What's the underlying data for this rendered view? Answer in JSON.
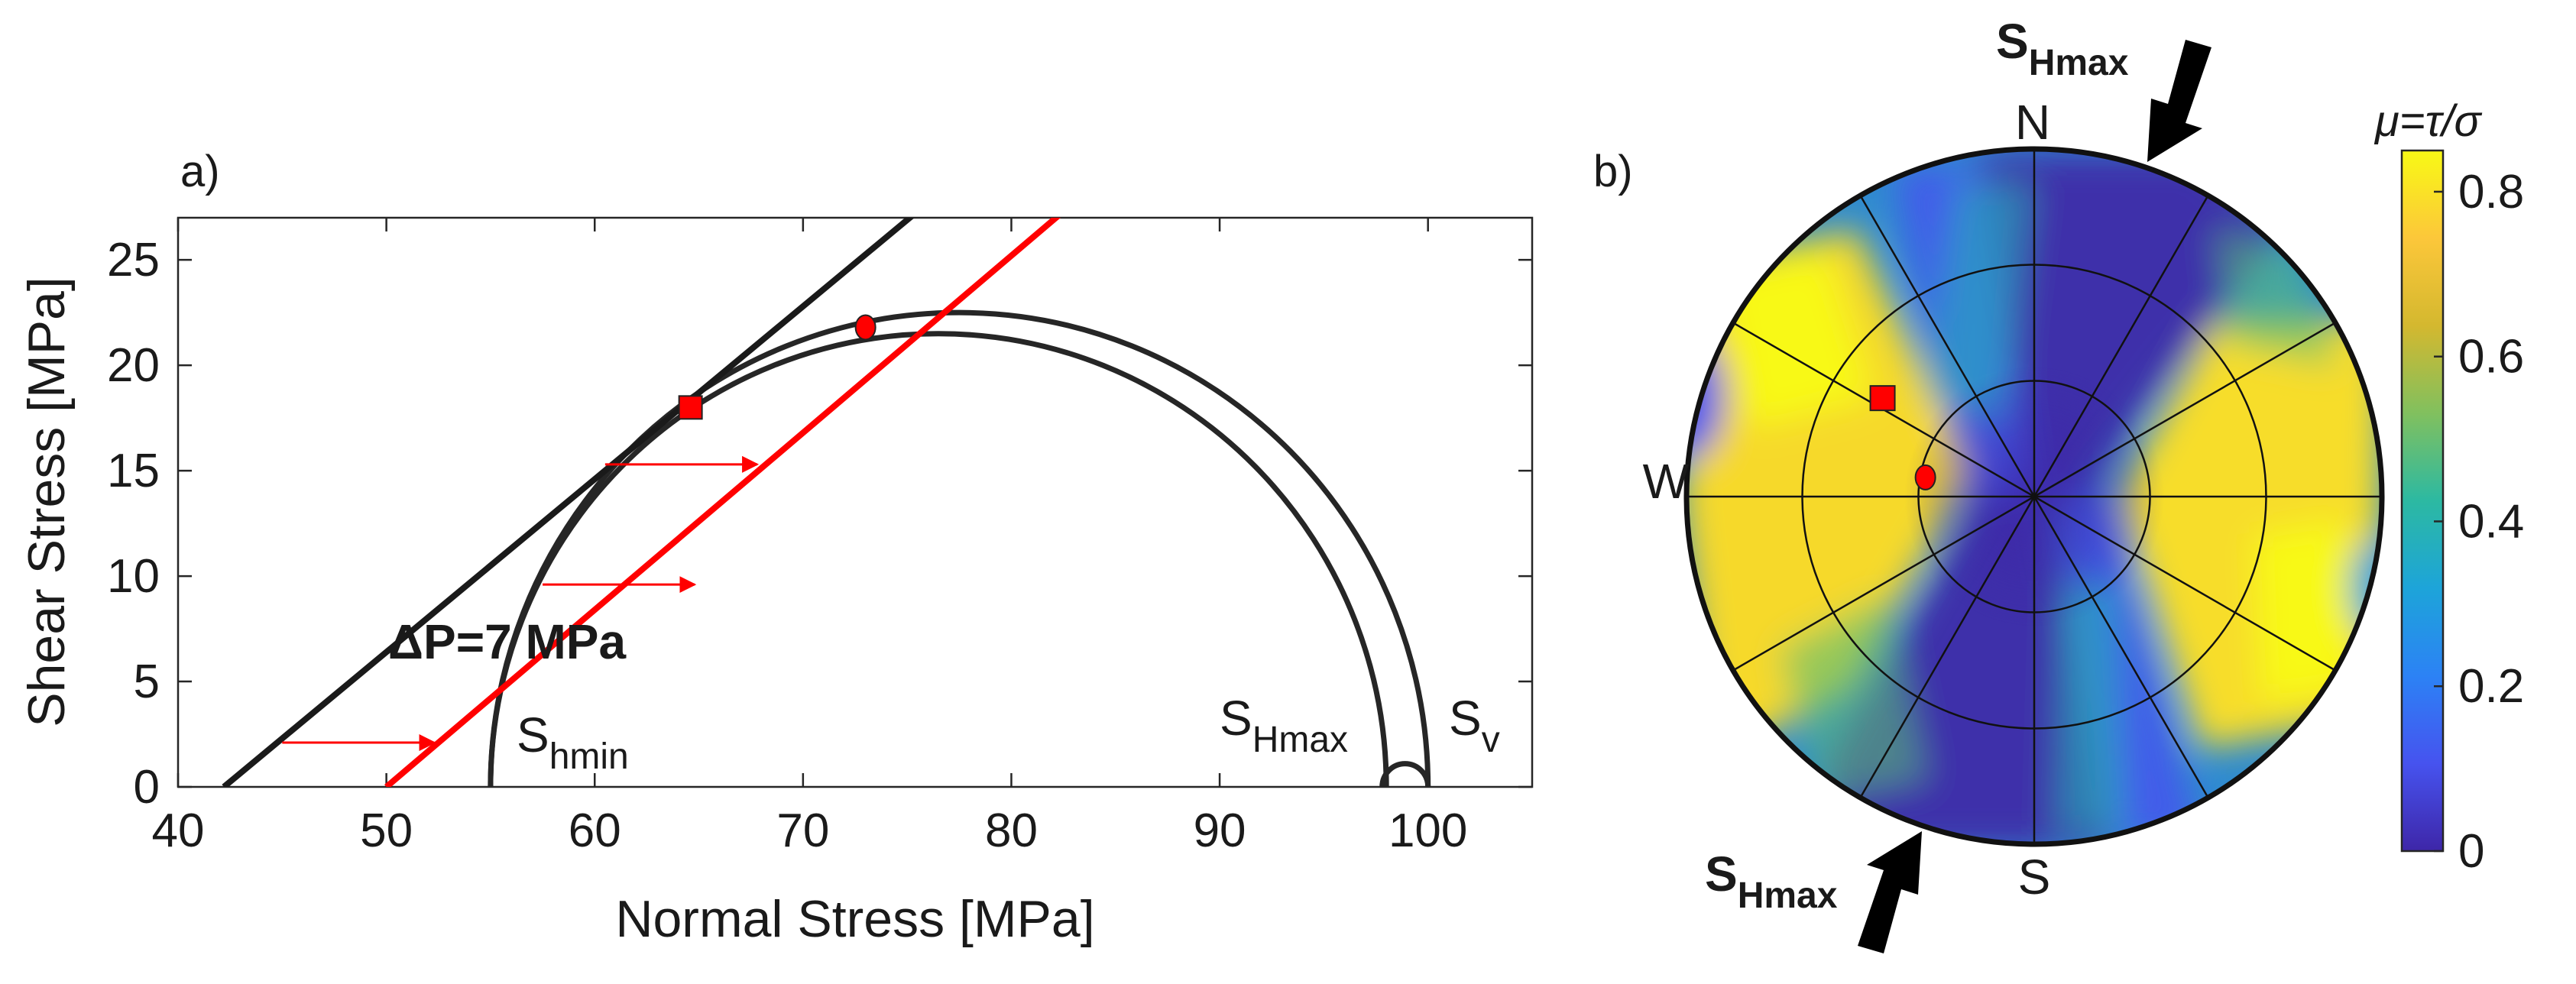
{
  "chart_data": [
    {
      "type": "line",
      "panel_label": "a)",
      "xlabel": "Normal Stress [MPa]",
      "ylabel": "Shear Stress  [MPa]",
      "xlim": [
        40,
        105
      ],
      "ylim": [
        0,
        27
      ],
      "x_ticks": [
        40,
        50,
        60,
        70,
        80,
        90,
        100
      ],
      "y_ticks": [
        0,
        5,
        10,
        15,
        20,
        25
      ],
      "grid": false,
      "failure_lines": [
        {
          "name": "initial failure envelope",
          "color": "#1a1a1a",
          "x0": 42.2,
          "slope": 0.82
        },
        {
          "name": "shifted failure envelope",
          "color": "#ff0000",
          "x0": 50.0,
          "slope": 0.84
        }
      ],
      "mohr_circles": [
        {
          "name": "Shmin-SV",
          "center": 77.5,
          "radius": 22.5
        },
        {
          "name": "SHmax-SV",
          "center": 98.9,
          "radius": 1.1
        },
        {
          "name": "Shmin-SHmax",
          "center": 76.5,
          "radius": 21.5
        }
      ],
      "shift_arrows": [
        {
          "x_from": 45.0,
          "x_to": 52.3,
          "y": 2.1
        },
        {
          "x_from": 57.5,
          "x_to": 64.8,
          "y": 9.6
        },
        {
          "x_from": 60.5,
          "x_to": 67.8,
          "y": 15.3
        }
      ],
      "markers": [
        {
          "shape": "square",
          "color": "#ff0000",
          "x": 64.6,
          "y": 18.0
        },
        {
          "shape": "circle",
          "color": "#ff0000",
          "x": 73.0,
          "y": 21.8
        }
      ],
      "annotations": {
        "delta_p": "ΔP=7 MPa",
        "shmin": {
          "main": "S",
          "sub": "hmin"
        },
        "shmax": {
          "main": "S",
          "sub": "Hmax"
        },
        "sv": {
          "main": "S",
          "sub": "v"
        }
      }
    },
    {
      "type": "heatmap",
      "projection": "stereonet",
      "panel_label": "b)",
      "directions": {
        "north": "N",
        "south": "S",
        "west": "W"
      },
      "shmax_label": {
        "main": "S",
        "sub": "Hmax"
      },
      "shmax_azimuth_deg": 18,
      "colorbar": {
        "label": "μ=τ/σ",
        "min": 0,
        "max": 0.85,
        "ticks": [
          0,
          0.2,
          0.4,
          0.6,
          0.8
        ],
        "colors": [
          "#3e26a8",
          "#4653ef",
          "#2c82f5",
          "#1da4d9",
          "#2cb9a2",
          "#81c05e",
          "#d4b82f",
          "#fcc73a",
          "#f8f915"
        ]
      },
      "markers": [
        {
          "shape": "square",
          "color": "#ff0000",
          "azimuth_deg": 303,
          "dip_deg": 72
        },
        {
          "shape": "circle",
          "color": "#ff0000",
          "azimuth_deg": 280,
          "dip_deg": 79
        }
      ]
    }
  ]
}
